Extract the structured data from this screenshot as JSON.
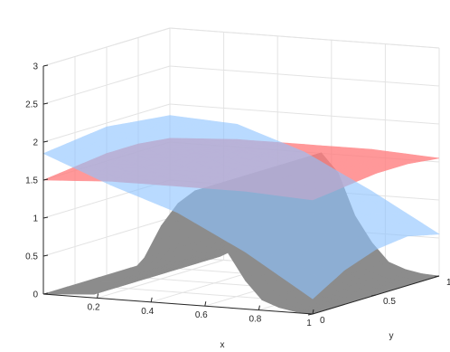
{
  "chart_data": {
    "type": "surface",
    "title": "",
    "xlabel": "x",
    "ylabel": "y",
    "zlabel": "",
    "xlim": [
      0,
      1
    ],
    "ylim": [
      0,
      1
    ],
    "zlim": [
      0,
      3
    ],
    "x_ticks": [
      "0.2",
      "0.4",
      "0.6",
      "0.8",
      "1"
    ],
    "y_ticks": [
      "0",
      "0.5",
      "1"
    ],
    "z_ticks": [
      "0",
      "0.5",
      "1",
      "1.5",
      "2",
      "2.5",
      "3"
    ],
    "grid": true,
    "series": [
      {
        "color": "#8c8c8c",
        "opacity": 1,
        "profile_x": [
          0.0,
          0.2,
          0.35,
          0.45,
          0.55,
          0.62,
          0.7,
          0.8,
          0.9,
          1.0
        ],
        "profile_z": [
          0.0,
          0.05,
          0.4,
          1.1,
          1.55,
          1.3,
          0.6,
          0.15,
          0.02,
          0.0
        ]
      },
      {
        "color": "#ff7f80",
        "opacity": 0.8,
        "grid_x": [
          0.0,
          0.25,
          0.5,
          0.75,
          1.0
        ],
        "grid_y": [
          0.0,
          0.25,
          0.5,
          0.75,
          1.0
        ],
        "z": [
          [
            1.5,
            1.55,
            1.55,
            1.55,
            1.5
          ],
          [
            1.55,
            1.6,
            1.6,
            1.6,
            1.55
          ],
          [
            1.6,
            1.65,
            1.75,
            1.65,
            1.6
          ],
          [
            1.6,
            1.65,
            1.7,
            1.65,
            1.6
          ],
          [
            1.55,
            1.6,
            1.6,
            1.6,
            1.55
          ]
        ]
      },
      {
        "color": "#8fc4ff",
        "opacity": 0.62,
        "grid_x": [
          0.0,
          0.25,
          0.5,
          0.75,
          1.0
        ],
        "grid_y": [
          0.0,
          0.25,
          0.5,
          0.75,
          1.0
        ],
        "z": [
          [
            1.85,
            1.5,
            1.2,
            0.75,
            0.2
          ],
          [
            1.9,
            1.75,
            1.4,
            1.0,
            0.45
          ],
          [
            1.95,
            1.95,
            1.6,
            1.2,
            0.6
          ],
          [
            1.9,
            1.9,
            1.65,
            1.2,
            0.65
          ],
          [
            1.85,
            1.8,
            1.5,
            1.05,
            0.55
          ]
        ]
      }
    ]
  }
}
